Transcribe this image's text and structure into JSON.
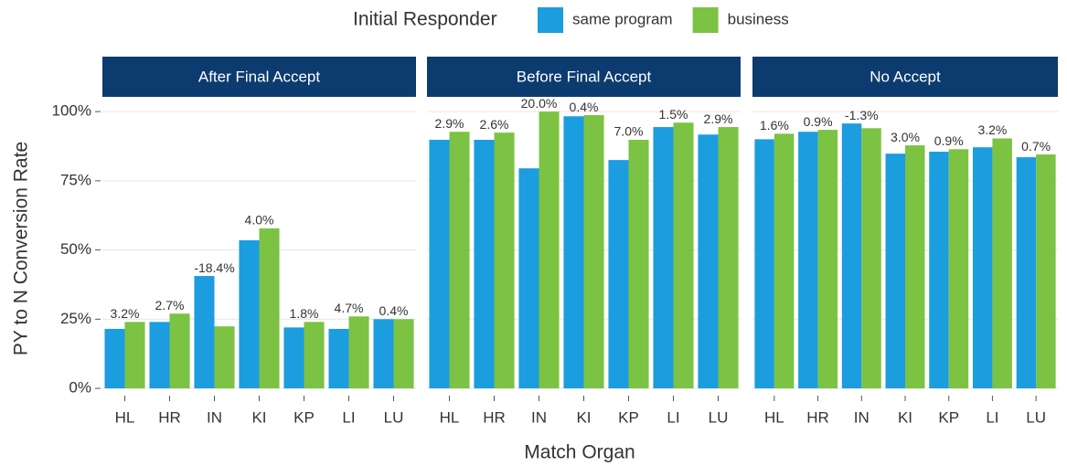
{
  "chart_data": {
    "type": "bar",
    "legend_title": "Initial Responder",
    "xlabel": "Match Organ",
    "ylabel": "PY to N Conversion Rate",
    "ylim": [
      -2.3,
      104
    ],
    "yticks": [
      {
        "value": 0,
        "label": "0%"
      },
      {
        "value": 25,
        "label": "25%"
      },
      {
        "value": 50,
        "label": "50%"
      },
      {
        "value": 75,
        "label": "75%"
      },
      {
        "value": 100,
        "label": "100%"
      }
    ],
    "grid": true,
    "series": [
      {
        "name": "same program",
        "color": "#1b9de0"
      },
      {
        "name": "business",
        "color": "#7cc243"
      }
    ],
    "facets": [
      {
        "title": "After Final Accept",
        "categories": [
          "HL",
          "HR",
          "IN",
          "KI",
          "KP",
          "LI",
          "LU"
        ],
        "series": [
          {
            "values": [
              21.5,
              24,
              40.6,
              53.5,
              22,
              21.5,
              25
            ]
          },
          {
            "values": [
              24,
              27,
              22.4,
              57.8,
              24,
              26,
              25
            ]
          }
        ],
        "annotations": [
          "3.2%",
          "2.7%",
          "-18.4%",
          "4.0%",
          "1.8%",
          "4.7%",
          "0.4%"
        ]
      },
      {
        "title": "Before Final Accept",
        "categories": [
          "HL",
          "HR",
          "IN",
          "KI",
          "KP",
          "LI",
          "LU"
        ],
        "series": [
          {
            "values": [
              89.8,
              89.8,
              79.5,
              98.3,
              82.5,
              94.4,
              91.7
            ]
          },
          {
            "values": [
              92.7,
              92.4,
              100,
              98.7,
              89.8,
              96,
              94.4
            ]
          }
        ],
        "annotations": [
          "2.9%",
          "2.6%",
          "20.0%",
          "0.4%",
          "7.0%",
          "1.5%",
          "2.9%"
        ]
      },
      {
        "title": "No Accept",
        "categories": [
          "HL",
          "HR",
          "IN",
          "KI",
          "KP",
          "LI",
          "LU"
        ],
        "series": [
          {
            "values": [
              90,
              92.7,
              95.7,
              84.8,
              85.5,
              87.1,
              83.5
            ]
          },
          {
            "values": [
              92,
              93.4,
              94,
              87.8,
              86.4,
              90.3,
              84.5
            ]
          }
        ],
        "annotations": [
          "1.6%",
          "0.9%",
          "-1.3%",
          "3.0%",
          "0.9%",
          "3.2%",
          "0.7%"
        ]
      }
    ]
  }
}
